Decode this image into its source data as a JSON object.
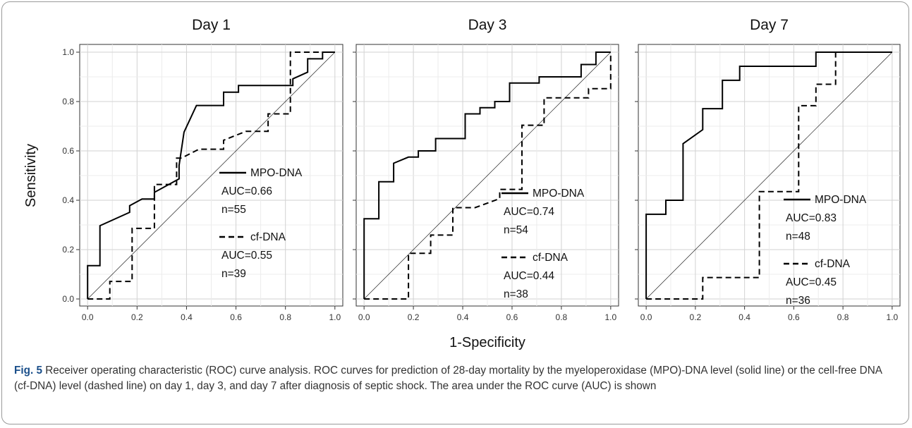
{
  "figure": {
    "ylabel": "Sensitivity",
    "xlabel": "1-Specificity"
  },
  "caption": {
    "label": "Fig. 5",
    "text": "Receiver operating characteristic (ROC) curve analysis. ROC curves for prediction of 28-day mortality by the myeloperoxidase (MPO)-DNA level (solid line) or the cell-free DNA (cf-DNA) level (dashed line) on day 1, day 3, and day 7 after diagnosis of septic shock. The area under the ROC curve (AUC) is shown"
  },
  "chart_data": [
    {
      "type": "line",
      "title": "Day 1",
      "xlim": [
        0,
        1
      ],
      "ylim": [
        0,
        1
      ],
      "ticks": [
        "0.0",
        "0.2",
        "0.4",
        "0.6",
        "0.8",
        "1.0"
      ],
      "grid": true,
      "series": [
        {
          "name": "MPO-DNA",
          "style": "solid",
          "auc": "AUC=0.66",
          "n": "n=55",
          "x": [
            0,
            0,
            0.05,
            0.05,
            0.17,
            0.17,
            0.22,
            0.22,
            0.27,
            0.27,
            0.37,
            0.37,
            0.39,
            0.39,
            0.44,
            0.44,
            0.55,
            0.55,
            0.61,
            0.61,
            0.83,
            0.83,
            0.89,
            0.89,
            0.95,
            0.95,
            1
          ],
          "y": [
            0,
            0.135,
            0.135,
            0.297,
            0.351,
            0.378,
            0.405,
            0.405,
            0.405,
            0.432,
            0.487,
            0.541,
            0.676,
            0.676,
            0.784,
            0.784,
            0.784,
            0.838,
            0.838,
            0.865,
            0.865,
            0.892,
            0.919,
            0.973,
            0.973,
            1,
            1
          ]
        },
        {
          "name": "cf-DNA",
          "style": "dashed",
          "auc": "AUC=0.55",
          "n": "n=39",
          "x": [
            0,
            0.09,
            0.09,
            0.18,
            0.18,
            0.27,
            0.27,
            0.36,
            0.36,
            0.38,
            0.38,
            0.45,
            0.55,
            0.55,
            0.64,
            0.73,
            0.73,
            0.82,
            0.82,
            0.82,
            0.91,
            0.91,
            1
          ],
          "y": [
            0,
            0,
            0.071,
            0.071,
            0.286,
            0.286,
            0.464,
            0.464,
            0.571,
            0.571,
            0.571,
            0.607,
            0.607,
            0.643,
            0.679,
            0.679,
            0.75,
            0.75,
            0.964,
            1,
            1,
            1,
            1
          ]
        }
      ]
    },
    {
      "type": "line",
      "title": "Day 3",
      "xlim": [
        0,
        1
      ],
      "ylim": [
        0,
        1
      ],
      "ticks": [
        "0.0",
        "0.2",
        "0.4",
        "0.6",
        "0.8",
        "1.0"
      ],
      "grid": true,
      "series": [
        {
          "name": "MPO-DNA",
          "style": "solid",
          "auc": "AUC=0.74",
          "n": "n=54",
          "x": [
            0,
            0,
            0.06,
            0.06,
            0.12,
            0.12,
            0.18,
            0.22,
            0.22,
            0.29,
            0.29,
            0.41,
            0.41,
            0.47,
            0.47,
            0.53,
            0.53,
            0.59,
            0.59,
            0.71,
            0.71,
            0.88,
            0.88,
            0.94,
            0.94,
            1
          ],
          "y": [
            0,
            0.325,
            0.325,
            0.475,
            0.475,
            0.55,
            0.575,
            0.575,
            0.6,
            0.6,
            0.65,
            0.65,
            0.75,
            0.75,
            0.775,
            0.775,
            0.8,
            0.8,
            0.875,
            0.875,
            0.9,
            0.9,
            0.95,
            0.95,
            1,
            1
          ]
        },
        {
          "name": "cf-DNA",
          "style": "dashed",
          "auc": "AUC=0.44",
          "n": "n=38",
          "x": [
            0,
            0.18,
            0.18,
            0.27,
            0.27,
            0.36,
            0.36,
            0.45,
            0.55,
            0.55,
            0.64,
            0.64,
            0.73,
            0.73,
            0.82,
            0.91,
            0.91,
            1,
            1
          ],
          "y": [
            0,
            0,
            0.185,
            0.185,
            0.259,
            0.259,
            0.37,
            0.37,
            0.407,
            0.444,
            0.444,
            0.704,
            0.704,
            0.815,
            0.815,
            0.815,
            0.852,
            0.852,
            1
          ]
        }
      ]
    },
    {
      "type": "line",
      "title": "Day 7",
      "xlim": [
        0,
        1
      ],
      "ylim": [
        0,
        1
      ],
      "ticks": [
        "0.0",
        "0.2",
        "0.4",
        "0.6",
        "0.8",
        "1.0"
      ],
      "grid": true,
      "series": [
        {
          "name": "MPO-DNA",
          "style": "solid",
          "auc": "AUC=0.83",
          "n": "n=48",
          "x": [
            0,
            0,
            0.08,
            0.08,
            0.15,
            0.15,
            0.23,
            0.23,
            0.31,
            0.31,
            0.38,
            0.38,
            0.69,
            0.69,
            1
          ],
          "y": [
            0,
            0.343,
            0.343,
            0.4,
            0.4,
            0.629,
            0.686,
            0.771,
            0.771,
            0.886,
            0.886,
            0.943,
            0.943,
            1,
            1
          ]
        },
        {
          "name": "cf-DNA",
          "style": "dashed",
          "auc": "AUC=0.45",
          "n": "n=36",
          "x": [
            0,
            0.23,
            0.23,
            0.46,
            0.46,
            0.62,
            0.62,
            0.69,
            0.69,
            0.77,
            0.77,
            1
          ],
          "y": [
            0,
            0,
            0.087,
            0.087,
            0.435,
            0.435,
            0.783,
            0.783,
            0.87,
            0.87,
            1,
            1
          ]
        }
      ]
    }
  ]
}
